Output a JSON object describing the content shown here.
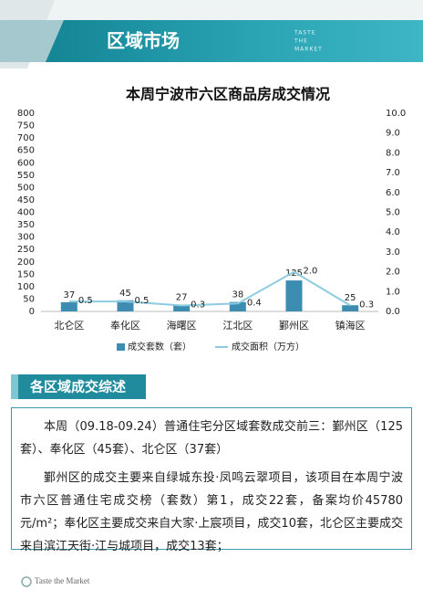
{
  "header": {
    "title": "区域市场",
    "tag_lines": [
      "TASTE",
      "THE",
      "MARKET"
    ]
  },
  "chart_data": {
    "type": "bar",
    "title": "本周宁波市六区商品房成交情况",
    "categories": [
      "北仑区",
      "奉化区",
      "海曙区",
      "江北区",
      "鄞州区",
      "镇海区"
    ],
    "series": [
      {
        "name": "成交套数（套）",
        "color": "#3d8db2",
        "values": [
          37,
          45,
          27,
          38,
          125,
          25
        ]
      },
      {
        "name": "成交面积（万方）",
        "color": "#8ccbe0",
        "axis": "y2",
        "values": [
          0.5,
          0.5,
          0.3,
          0.4,
          2.0,
          0.3
        ],
        "value_labels": [
          "0.5",
          "0.5",
          "0.3",
          "0.4",
          "2.0",
          "0.3"
        ]
      }
    ],
    "ylim": [
      0,
      800
    ],
    "yticks": [
      0,
      50,
      100,
      150,
      200,
      250,
      300,
      350,
      400,
      450,
      500,
      550,
      600,
      650,
      700,
      750,
      800
    ],
    "y2lim": [
      0,
      10
    ],
    "y2ticks": [
      {
        "value": 0,
        "label": "0.0"
      },
      {
        "value": 1,
        "label": "1.0"
      },
      {
        "value": 2,
        "label": "2.0"
      },
      {
        "value": 3,
        "label": "3.0"
      },
      {
        "value": 4,
        "label": "4.0"
      },
      {
        "value": 5,
        "label": "5.0"
      },
      {
        "value": 6,
        "label": "6.0"
      },
      {
        "value": 7,
        "label": "7.0"
      },
      {
        "value": 8,
        "label": "8.0"
      },
      {
        "value": 9,
        "label": "9.0"
      },
      {
        "value": 10,
        "label": "10.0"
      }
    ],
    "grid": false,
    "legend": "bottom"
  },
  "section": {
    "title": "各区域成交综述",
    "paragraphs": [
      "本周（09.18-09.24）普通住宅分区域套数成交前三：鄞州区（125套）、奉化区（45套）、北仑区（37套）",
      "鄞州区的成交主要来自绿城东投·凤鸣云翠项目，该项目在本周宁波市六区普通住宅成交榜（套数）第1，成交22套，备案均价45780元/m²；奉化区主要成交来自大家·上宸项目，成交10套，北仑区主要成交来自滨江天街·江与城项目，成交13套；"
    ]
  },
  "footer": {
    "brand": "Taste the Market"
  }
}
